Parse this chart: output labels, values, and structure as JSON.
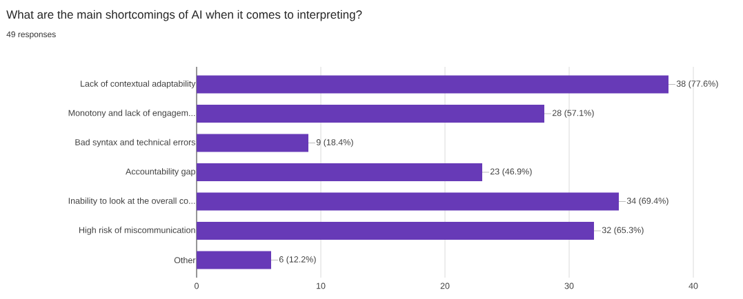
{
  "chart_data": {
    "type": "bar",
    "orientation": "horizontal",
    "title": "What are the main shortcomings of AI when it comes to interpreting?",
    "subtitle": "49 responses",
    "categories": [
      "Lack of contextual adaptability",
      "Monotony and lack of engagem...",
      "Bad syntax and technical errors",
      "Accountability gap",
      "Inability to look at the overall co...",
      "High risk of miscommunication",
      "Other"
    ],
    "values": [
      38,
      28,
      9,
      23,
      34,
      32,
      6
    ],
    "value_labels": [
      "38 (77.6%)",
      "28 (57.1%)",
      "9 (18.4%)",
      "23 (46.9%)",
      "34 (69.4%)",
      "32 (65.3%)",
      "6 (12.2%)"
    ],
    "color": "#673ab7",
    "xlim": [
      0,
      40
    ],
    "xticks": [
      0,
      10,
      20,
      30,
      40
    ],
    "grid": "x"
  }
}
